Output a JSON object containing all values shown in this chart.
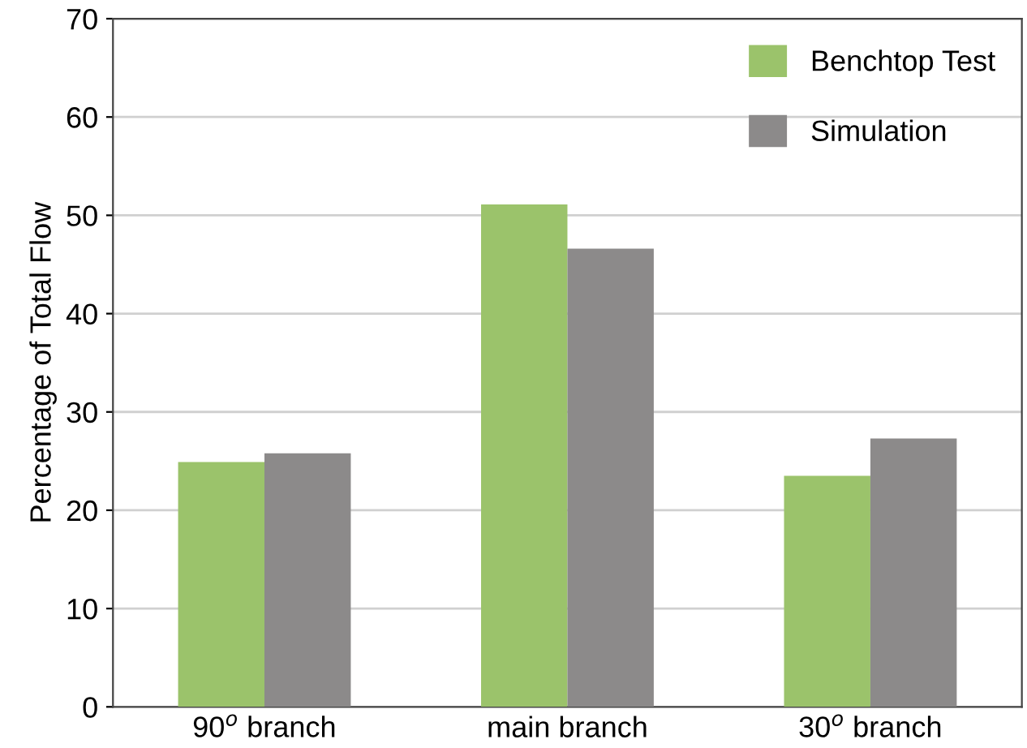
{
  "chart_data": {
    "type": "bar",
    "ylabel": "Percentage of Total Flow",
    "categories": [
      "90$^{o}$ branch",
      "main branch",
      "30$^{o}$ branch"
    ],
    "series": [
      {
        "name": "Benchtop Test",
        "color": "#9bc36b",
        "values": [
          24.9,
          51.1,
          23.5
        ]
      },
      {
        "name": "Simulation",
        "color": "#8c8a8a",
        "values": [
          25.8,
          46.6,
          27.3
        ]
      }
    ],
    "ylim": [
      0,
      70
    ],
    "yticks": [
      0,
      10,
      20,
      30,
      40,
      50,
      60,
      70
    ],
    "grid": "y",
    "legend": "top right"
  }
}
